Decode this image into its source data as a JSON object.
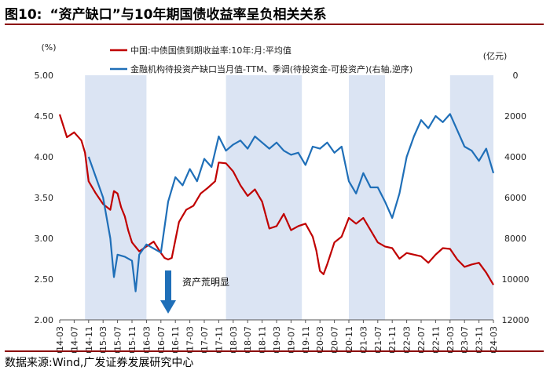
{
  "title": {
    "number": "图10:",
    "text": "“资产缺口”与10年期国债收益率呈负相关关系"
  },
  "source": "数据来源:Wind,广发证券发展研究中心",
  "chart_data": {
    "type": "line",
    "y_left": {
      "unit": "(%)",
      "range": [
        2.0,
        5.0
      ],
      "ticks": [
        "5.00",
        "4.50",
        "4.00",
        "3.50",
        "3.00",
        "2.50",
        "2.00"
      ]
    },
    "y_right": {
      "unit": "(亿元)",
      "range": [
        0,
        12000
      ],
      "reversed": true,
      "ticks": [
        "0",
        "2000",
        "4000",
        "6000",
        "8000",
        "10000",
        "12000"
      ]
    },
    "x_ticks": [
      "2014-03",
      "2014-07",
      "2014-11",
      "2015-03",
      "2015-07",
      "2015-11",
      "2016-03",
      "2016-07",
      "2016-11",
      "2017-03",
      "2017-07",
      "2017-11",
      "2018-03",
      "2018-07",
      "2018-11",
      "2019-03",
      "2019-07",
      "2019-11",
      "2020-03",
      "2020-07",
      "2020-11",
      "2021-03",
      "2021-07",
      "2021-11",
      "2022-03",
      "2022-07",
      "2022-11",
      "2023-03",
      "2023-07",
      "2023-11",
      "2024-03"
    ],
    "shaded_periods": [
      [
        "2014-10",
        "2016-03"
      ],
      [
        "2018-01",
        "2019-10"
      ],
      [
        "2020-11",
        "2021-09"
      ],
      [
        "2023-03",
        "2024-03"
      ]
    ],
    "annotation": "资产荒明显",
    "series": [
      {
        "name": "中国:中债国债到期收益率:10年:月:平均值",
        "axis": "left",
        "color": "#c00000",
        "x": [
          "2014-03",
          "2014-05",
          "2014-07",
          "2014-09",
          "2014-10",
          "2014-11",
          "2015-01",
          "2015-03",
          "2015-05",
          "2015-06",
          "2015-07",
          "2015-08",
          "2015-09",
          "2015-10",
          "2015-11",
          "2016-01",
          "2016-03",
          "2016-05",
          "2016-07",
          "2016-08",
          "2016-09",
          "2016-10",
          "2016-11",
          "2016-12",
          "2017-02",
          "2017-04",
          "2017-06",
          "2017-08",
          "2017-10",
          "2017-11",
          "2018-01",
          "2018-03",
          "2018-05",
          "2018-07",
          "2018-09",
          "2018-11",
          "2019-01",
          "2019-03",
          "2019-05",
          "2019-07",
          "2019-09",
          "2019-11",
          "2020-01",
          "2020-02",
          "2020-03",
          "2020-04",
          "2020-05",
          "2020-07",
          "2020-09",
          "2020-11",
          "2021-01",
          "2021-03",
          "2021-05",
          "2021-07",
          "2021-09",
          "2021-11",
          "2022-01",
          "2022-03",
          "2022-05",
          "2022-07",
          "2022-09",
          "2022-11",
          "2023-01",
          "2023-03",
          "2023-05",
          "2023-07",
          "2023-09",
          "2023-11",
          "2024-01",
          "2024-03"
        ],
        "values": [
          4.52,
          4.24,
          4.3,
          4.2,
          4.05,
          3.7,
          3.55,
          3.42,
          3.35,
          3.58,
          3.55,
          3.38,
          3.27,
          3.09,
          2.95,
          2.84,
          2.9,
          2.96,
          2.82,
          2.76,
          2.74,
          2.76,
          2.98,
          3.2,
          3.35,
          3.4,
          3.55,
          3.62,
          3.7,
          3.93,
          3.92,
          3.82,
          3.65,
          3.52,
          3.6,
          3.45,
          3.12,
          3.15,
          3.3,
          3.1,
          3.15,
          3.18,
          3.02,
          2.85,
          2.6,
          2.56,
          2.68,
          2.95,
          3.02,
          3.25,
          3.18,
          3.25,
          3.1,
          2.95,
          2.9,
          2.88,
          2.75,
          2.82,
          2.8,
          2.78,
          2.7,
          2.8,
          2.88,
          2.87,
          2.74,
          2.65,
          2.68,
          2.7,
          2.58,
          2.43
        ]
      },
      {
        "name": "金融机构待投资产缺口当月值-TTM、季调(待投资金-可投资产)(右轴,逆序)",
        "axis": "right",
        "color": "#1f6fb8",
        "x": [
          "2014-11",
          "2015-01",
          "2015-03",
          "2015-05",
          "2015-06",
          "2015-07",
          "2015-09",
          "2015-11",
          "2015-12",
          "2016-01",
          "2016-03",
          "2016-05",
          "2016-07",
          "2016-09",
          "2016-11",
          "2017-01",
          "2017-03",
          "2017-05",
          "2017-07",
          "2017-09",
          "2017-11",
          "2018-01",
          "2018-03",
          "2018-05",
          "2018-07",
          "2018-09",
          "2018-11",
          "2019-01",
          "2019-03",
          "2019-05",
          "2019-07",
          "2019-09",
          "2019-11",
          "2020-01",
          "2020-03",
          "2020-05",
          "2020-07",
          "2020-09",
          "2020-11",
          "2021-01",
          "2021-03",
          "2021-05",
          "2021-07",
          "2021-09",
          "2021-11",
          "2022-01",
          "2022-03",
          "2022-05",
          "2022-07",
          "2022-09",
          "2022-11",
          "2023-01",
          "2023-03",
          "2023-05",
          "2023-07",
          "2023-09",
          "2023-11",
          "2024-01",
          "2024-03"
        ],
        "values": [
          4000,
          5000,
          6000,
          8000,
          9900,
          8800,
          8900,
          9100,
          10600,
          8800,
          8300,
          8500,
          8700,
          6200,
          5000,
          5400,
          4600,
          5200,
          4100,
          4500,
          3000,
          3700,
          3400,
          3200,
          3600,
          3000,
          3300,
          3600,
          3300,
          3700,
          3900,
          3800,
          4400,
          3500,
          3600,
          3300,
          3800,
          3500,
          5200,
          5800,
          4800,
          5500,
          5500,
          6200,
          7000,
          5800,
          4000,
          3000,
          2200,
          2600,
          2000,
          2300,
          1900,
          2700,
          3500,
          3700,
          4200,
          3600,
          4800
        ]
      }
    ]
  }
}
